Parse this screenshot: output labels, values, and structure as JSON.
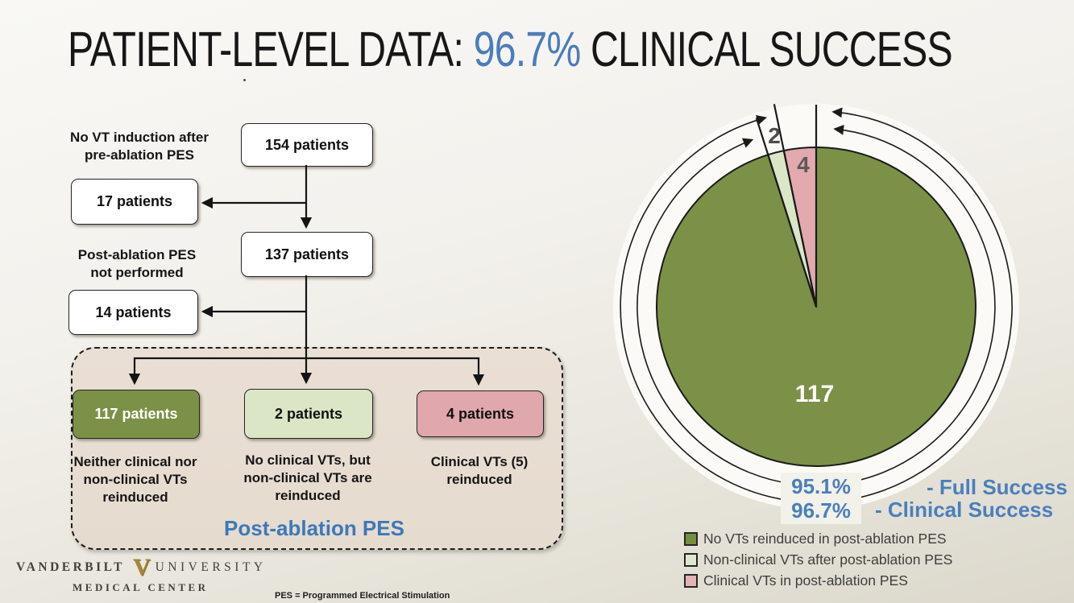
{
  "title": {
    "prefix": "PATIENT-LEVEL DATA: ",
    "highlight": "96.7%",
    "suffix": " CLINICAL SUCCESS",
    "highlight_color": "#4b7cbd"
  },
  "flowchart": {
    "nodes": {
      "n154": "154 patients",
      "n17": "17 patients",
      "n137": "137 patients",
      "n14": "14 patients"
    },
    "side_labels": [
      {
        "lines": [
          "No VT induction after",
          "pre-ablation PES"
        ]
      },
      {
        "lines": [
          "Post-ablation PES",
          "not performed"
        ]
      }
    ],
    "outcomes": [
      {
        "count_label": "117 patients",
        "desc_lines": [
          "Neither clinical nor",
          "non-clinical VTs",
          "reinduced"
        ],
        "color": "#7b9147",
        "text_color": "#ffffff"
      },
      {
        "count_label": "2 patients",
        "desc_lines": [
          "No clinical VTs, but",
          "non-clinical VTs are",
          "reinduced"
        ],
        "color": "#dae6c5",
        "text_color": "#1a1a1a"
      },
      {
        "count_label": "4 patients",
        "desc_lines": [
          "Clinical VTs (5)",
          "reinduced"
        ],
        "color": "#e0a7ac",
        "text_color": "#1a1a1a"
      }
    ],
    "container_label": "Post-ablation PES",
    "container_label_color": "#3d79b8"
  },
  "chart_data": {
    "type": "pie",
    "labels": [
      "No VTs reinduced in post-ablation PES",
      "Non-clinical VTs after post-ablation PES",
      "Clinical VTs in post-ablation PES"
    ],
    "values": [
      117,
      2,
      4
    ],
    "colors": [
      "#7a9147",
      "#dae6c5",
      "#e2a9ae"
    ],
    "start_angle_deg": 0,
    "direction": "clockwise",
    "legend_position": "bottom",
    "annotations": {
      "full_success": {
        "pct": "95.1%",
        "label": "- Full Success"
      },
      "clinical_success": {
        "pct": "96.7%",
        "label": "- Clinical Success"
      },
      "accent_color": "#4a7fbc"
    }
  },
  "footer": {
    "org_word1": "VANDERBILT",
    "org_mark": "V",
    "org_word2": "UNIVERSITY",
    "org_line2": "MEDICAL CENTER",
    "footnote": "PES = Programmed Electrical Stimulation"
  }
}
